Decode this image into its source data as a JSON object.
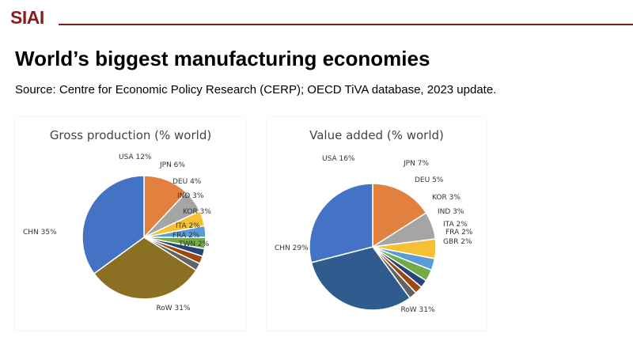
{
  "header": {
    "logo_text": "SIAI",
    "title": "World’s biggest manufacturing economies",
    "source": "Source: Centre for Economic Policy Research (CERP); OECD TiVA database, 2023 update."
  },
  "colors": {
    "brand": "#8b1a1a",
    "rule": "#7a1f1f"
  },
  "chart_data": [
    {
      "type": "pie",
      "title": "Gross production  (% world)",
      "slices": [
        {
          "label": "USA 12%",
          "name": "USA",
          "value": 12,
          "color": "#e2803f"
        },
        {
          "label": "JPN 6%",
          "name": "JPN",
          "value": 6,
          "color": "#a5a5a5"
        },
        {
          "label": "DEU 4%",
          "name": "DEU",
          "value": 4,
          "color": "#f5c132"
        },
        {
          "label": "IND 3%",
          "name": "IND",
          "value": 3,
          "color": "#5b9bd5"
        },
        {
          "label": "KOR 3%",
          "name": "KOR",
          "value": 3,
          "color": "#70ad47"
        },
        {
          "label": "ITA 2%",
          "name": "ITA",
          "value": 2,
          "color": "#264478"
        },
        {
          "label": "FRA 2%",
          "name": "FRA",
          "value": 2,
          "color": "#9e480e"
        },
        {
          "label": "TWN 2%",
          "name": "TWN",
          "value": 2,
          "color": "#636363"
        },
        {
          "label": "RoW 31%",
          "name": "RoW",
          "value": 31,
          "color": "#8b7024"
        },
        {
          "label": "CHN 35%",
          "name": "CHN",
          "value": 35,
          "color": "#4472c4"
        }
      ]
    },
    {
      "type": "pie",
      "title": "Value added (% world)",
      "slices": [
        {
          "label": "USA 16%",
          "name": "USA",
          "value": 16,
          "color": "#e2803f"
        },
        {
          "label": "JPN 7%",
          "name": "JPN",
          "value": 7,
          "color": "#a5a5a5"
        },
        {
          "label": "DEU 5%",
          "name": "DEU",
          "value": 5,
          "color": "#f5c132"
        },
        {
          "label": "KOR 3%",
          "name": "KOR",
          "value": 3,
          "color": "#5b9bd5"
        },
        {
          "label": "IND 3%",
          "name": "IND",
          "value": 3,
          "color": "#70ad47"
        },
        {
          "label": "ITA 2%",
          "name": "ITA",
          "value": 2,
          "color": "#264478"
        },
        {
          "label": "FRA 2%",
          "name": "FRA",
          "value": 2,
          "color": "#9e480e"
        },
        {
          "label": "GBR 2%",
          "name": "GBR",
          "value": 2,
          "color": "#636363"
        },
        {
          "label": "RoW 31%",
          "name": "RoW",
          "value": 31,
          "color": "#2f5b8f"
        },
        {
          "label": "CHN 29%",
          "name": "CHN",
          "value": 29,
          "color": "#4472c4"
        }
      ]
    }
  ]
}
